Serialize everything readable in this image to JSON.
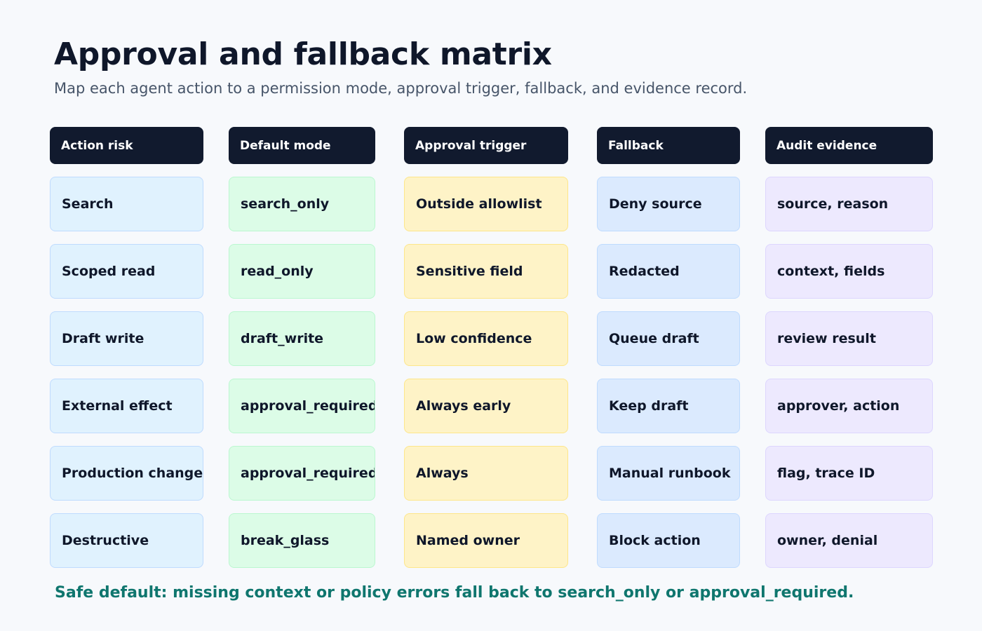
{
  "title": "Approval and fallback matrix",
  "subtitle": "Map each agent action to a permission mode, approval trigger, fallback, and evidence record.",
  "columns": [
    {
      "header": "Action risk",
      "cells": [
        "Search",
        "Scoped read",
        "Draft write",
        "External effect",
        "Production change",
        "Destructive"
      ]
    },
    {
      "header": "Default mode",
      "cells": [
        "search_only",
        "read_only",
        "draft_write",
        "approval_required",
        "approval_required",
        "break_glass"
      ]
    },
    {
      "header": "Approval trigger",
      "cells": [
        "Outside allowlist",
        "Sensitive field",
        "Low confidence",
        "Always early",
        "Always",
        "Named owner"
      ]
    },
    {
      "header": "Fallback",
      "cells": [
        "Deny source",
        "Redacted",
        "Queue draft",
        "Keep draft",
        "Manual runbook",
        "Block action"
      ]
    },
    {
      "header": "Audit evidence",
      "cells": [
        "source, reason",
        "context, fields",
        "review result",
        "approver, action",
        "flag, trace ID",
        "owner, denial"
      ]
    }
  ],
  "footer": "Safe default: missing context or policy errors fall back to search_only or approval_required.",
  "colors": {
    "header_bg": "#111a2e",
    "action_risk": "#e0f2fe",
    "default_mode": "#dcfce7",
    "approval_trigger": "#fef3c7",
    "fallback": "#dbeafe",
    "audit_evidence": "#ede9fe",
    "footer_text": "#0f766e"
  }
}
